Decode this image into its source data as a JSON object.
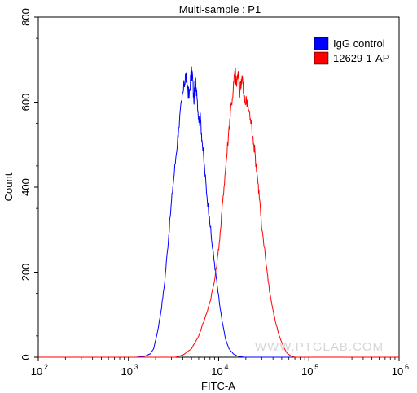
{
  "chart_data": {
    "type": "line",
    "title": "Multi-sample : P1",
    "xlabel": "FITC-A",
    "ylabel": "Count",
    "x_scale": "log",
    "xlim": [
      100,
      1000000
    ],
    "ylim": [
      0,
      800
    ],
    "x_ticks": [
      {
        "value": 100,
        "base": "10",
        "exp": "2"
      },
      {
        "value": 1000,
        "base": "10",
        "exp": "3"
      },
      {
        "value": 10000,
        "base": "10",
        "exp": "4"
      },
      {
        "value": 100000,
        "base": "10",
        "exp": "5"
      },
      {
        "value": 1000000,
        "base": "10",
        "exp": "6"
      }
    ],
    "y_ticks": [
      {
        "value": 0,
        "label": "0"
      },
      {
        "value": 200,
        "label": "200"
      },
      {
        "value": 400,
        "label": "400"
      },
      {
        "value": 600,
        "label": "600"
      },
      {
        "value": 800,
        "label": "800"
      }
    ],
    "grid": false,
    "legend_position": "top-right",
    "series": [
      {
        "name": "IgG control",
        "color": "#0000ff",
        "points": [
          [
            100,
            0
          ],
          [
            1200,
            0
          ],
          [
            1500,
            2
          ],
          [
            1750,
            8
          ],
          [
            1900,
            20
          ],
          [
            2100,
            60
          ],
          [
            2300,
            110
          ],
          [
            2500,
            170
          ],
          [
            2700,
            250
          ],
          [
            2900,
            330
          ],
          [
            3100,
            400
          ],
          [
            3350,
            470
          ],
          [
            3600,
            540
          ],
          [
            3900,
            600
          ],
          [
            4150,
            640
          ],
          [
            4300,
            665
          ],
          [
            4500,
            640
          ],
          [
            4700,
            610
          ],
          [
            4900,
            660
          ],
          [
            5100,
            670
          ],
          [
            5300,
            600
          ],
          [
            5500,
            650
          ],
          [
            5700,
            630
          ],
          [
            6000,
            560
          ],
          [
            6300,
            560
          ],
          [
            6600,
            500
          ],
          [
            7000,
            440
          ],
          [
            7400,
            380
          ],
          [
            7900,
            330
          ],
          [
            8400,
            270
          ],
          [
            9000,
            220
          ],
          [
            9600,
            170
          ],
          [
            10300,
            120
          ],
          [
            11000,
            80
          ],
          [
            12000,
            40
          ],
          [
            13000,
            20
          ],
          [
            14500,
            8
          ],
          [
            16000,
            3
          ],
          [
            19000,
            0
          ],
          [
            1000000,
            0
          ]
        ]
      },
      {
        "name": "12629-1-AP",
        "color": "#ff0000",
        "points": [
          [
            100,
            0
          ],
          [
            3300,
            0
          ],
          [
            4000,
            5
          ],
          [
            5000,
            20
          ],
          [
            6000,
            50
          ],
          [
            7000,
            90
          ],
          [
            8000,
            130
          ],
          [
            9000,
            180
          ],
          [
            9800,
            240
          ],
          [
            10500,
            300
          ],
          [
            11200,
            380
          ],
          [
            12000,
            450
          ],
          [
            12800,
            520
          ],
          [
            13500,
            580
          ],
          [
            14500,
            630
          ],
          [
            15200,
            675
          ],
          [
            15700,
            640
          ],
          [
            16400,
            670
          ],
          [
            17000,
            620
          ],
          [
            17600,
            650
          ],
          [
            18300,
            660
          ],
          [
            19000,
            610
          ],
          [
            20000,
            600
          ],
          [
            21200,
            590
          ],
          [
            22500,
            560
          ],
          [
            24000,
            520
          ],
          [
            25500,
            470
          ],
          [
            27000,
            420
          ],
          [
            28500,
            370
          ],
          [
            30000,
            300
          ],
          [
            32000,
            260
          ],
          [
            34500,
            200
          ],
          [
            37000,
            150
          ],
          [
            40000,
            110
          ],
          [
            43000,
            80
          ],
          [
            47000,
            50
          ],
          [
            52000,
            25
          ],
          [
            57000,
            10
          ],
          [
            63000,
            3
          ],
          [
            70000,
            0
          ],
          [
            1000000,
            0
          ]
        ]
      }
    ],
    "watermark": "WWW.PTGLAB.COM"
  }
}
